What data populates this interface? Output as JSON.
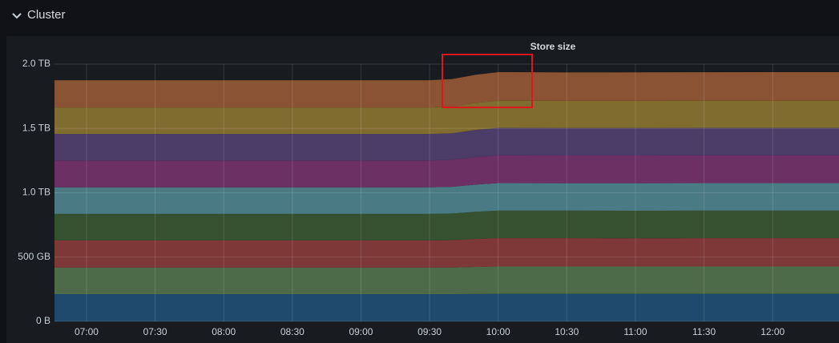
{
  "header": {
    "title": "Cluster"
  },
  "chart_data": {
    "type": "stacked-area",
    "title": "Store size",
    "x": [
      "06:46",
      "09:30",
      "09:40",
      "09:50",
      "10:00",
      "10:30",
      "11:00",
      "11:30",
      "12:00",
      "12:29"
    ],
    "xlim": [
      "06:46",
      "12:29"
    ],
    "xticks": [
      "07:00",
      "07:30",
      "08:00",
      "08:30",
      "09:00",
      "09:30",
      "10:00",
      "10:30",
      "11:00",
      "11:30",
      "12:00"
    ],
    "ylim": [
      0,
      2000
    ],
    "yticks": [
      {
        "value": 0,
        "label": "0 B"
      },
      {
        "value": 500,
        "label": "500 GB"
      },
      {
        "value": 1000,
        "label": "1.0 TB"
      },
      {
        "value": 1500,
        "label": "1.5 TB"
      },
      {
        "value": 2000,
        "label": "2.0 TB"
      }
    ],
    "grid": true,
    "series": [
      {
        "color": "#1f4a6e",
        "values": [
          212,
          212,
          212,
          213,
          214,
          214,
          214,
          214,
          214,
          214
        ]
      },
      {
        "color": "#4d6b48",
        "values": [
          206,
          206,
          207,
          211,
          213,
          213,
          213,
          213,
          213,
          213
        ]
      },
      {
        "color": "#7f3838",
        "values": [
          212,
          212,
          213,
          217,
          220,
          220,
          219,
          220,
          220,
          220
        ]
      },
      {
        "color": "#36512f",
        "values": [
          206,
          206,
          207,
          211,
          214,
          214,
          214,
          214,
          214,
          214
        ]
      },
      {
        "color": "#4a7a83",
        "values": [
          206,
          206,
          207,
          211,
          214,
          213,
          214,
          214,
          214,
          214
        ]
      },
      {
        "color": "#6c3064",
        "values": [
          209,
          209,
          210,
          214,
          216,
          216,
          216,
          216,
          216,
          216
        ]
      },
      {
        "color": "#4b3c68",
        "values": [
          206,
          206,
          207,
          211,
          213,
          213,
          213,
          213,
          213,
          213
        ]
      },
      {
        "color": "#806c2f",
        "values": [
          206,
          206,
          207,
          210,
          212,
          212,
          212,
          212,
          212,
          212
        ]
      },
      {
        "color": "#8a5434",
        "values": [
          212,
          212,
          214,
          219,
          222,
          220,
          221,
          221,
          222,
          222
        ]
      }
    ]
  }
}
